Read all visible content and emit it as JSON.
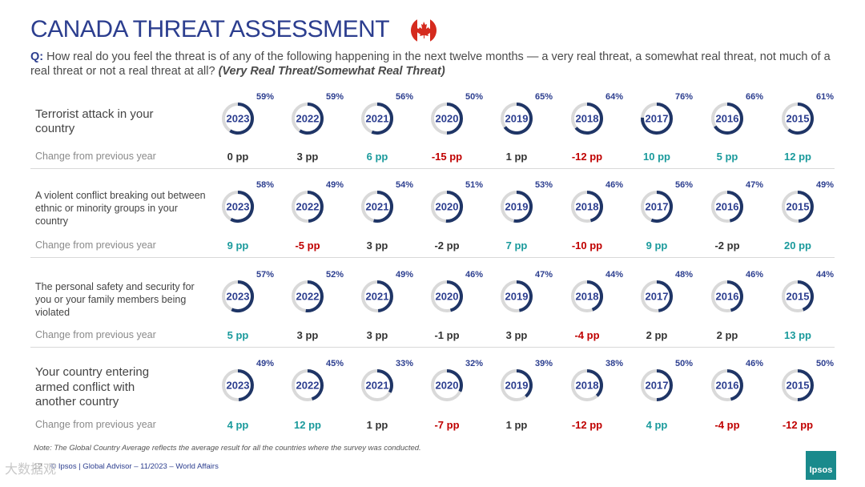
{
  "header": {
    "title": "CANADA THREAT ASSESSMENT",
    "question_prefix": "Q:",
    "question_text": "How real do you feel the threat is of any of the following happening in the next twelve months — a very real threat, a somewhat real threat, not much of a real threat or not a real threat at all?",
    "question_note": "(Very Real Threat/Somewhat Real Threat)"
  },
  "colors": {
    "accent": "#2c3e8f",
    "ring_fill": "#1f3566",
    "ring_track": "#d9d9d9",
    "positive": "#1a9a9c",
    "negative": "#c00000",
    "neutral": "#333333",
    "flag_red": "#d52b1e"
  },
  "chart_data": {
    "type": "donut-grid",
    "years": [
      "2023",
      "2022",
      "2021",
      "2020",
      "2019",
      "2018",
      "2017",
      "2016",
      "2015"
    ],
    "change_label": "Change from previous year",
    "rows": [
      {
        "label": "Terrorist attack in your country",
        "values": [
          59,
          59,
          56,
          50,
          65,
          64,
          76,
          66,
          61
        ],
        "pct_labels": [
          "59%",
          "59%",
          "56%",
          "50%",
          "65%",
          "64%",
          "76%",
          "66%",
          "61%"
        ],
        "changes": [
          "0 pp",
          "3 pp",
          "6 pp",
          "-15 pp",
          "1 pp",
          "-12 pp",
          "10 pp",
          "5 pp",
          "12 pp"
        ],
        "change_signs": [
          0,
          0,
          1,
          -1,
          0,
          -1,
          1,
          1,
          1
        ]
      },
      {
        "label": "A violent conflict breaking out between ethnic or minority groups in your country",
        "values": [
          58,
          49,
          54,
          51,
          53,
          46,
          56,
          47,
          49
        ],
        "pct_labels": [
          "58%",
          "49%",
          "54%",
          "51%",
          "53%",
          "46%",
          "56%",
          "47%",
          "49%"
        ],
        "changes": [
          "9 pp",
          "-5 pp",
          "3 pp",
          "-2 pp",
          "7 pp",
          "-10 pp",
          "9 pp",
          "-2 pp",
          "20 pp"
        ],
        "change_signs": [
          1,
          -1,
          0,
          0,
          1,
          -1,
          1,
          0,
          1
        ]
      },
      {
        "label": "The personal safety and security for you or your family members being violated",
        "values": [
          57,
          52,
          49,
          46,
          47,
          44,
          48,
          46,
          44
        ],
        "pct_labels": [
          "57%",
          "52%",
          "49%",
          "46%",
          "47%",
          "44%",
          "48%",
          "46%",
          "44%"
        ],
        "changes": [
          "5 pp",
          "3 pp",
          "3 pp",
          "-1 pp",
          "3 pp",
          "-4 pp",
          "2 pp",
          "2 pp",
          "13 pp"
        ],
        "change_signs": [
          1,
          0,
          0,
          0,
          0,
          -1,
          0,
          0,
          1
        ]
      },
      {
        "label": "Your country entering armed conflict with another country",
        "values": [
          49,
          45,
          33,
          32,
          39,
          38,
          50,
          46,
          50
        ],
        "pct_labels": [
          "49%",
          "45%",
          "33%",
          "32%",
          "39%",
          "38%",
          "50%",
          "46%",
          "50%"
        ],
        "changes": [
          "4 pp",
          "12 pp",
          "1 pp",
          "-7 pp",
          "1 pp",
          "-12 pp",
          "4 pp",
          "-4 pp",
          "-12 pp"
        ],
        "change_signs": [
          1,
          1,
          0,
          -1,
          0,
          -1,
          1,
          -1,
          -1
        ]
      }
    ]
  },
  "footer": {
    "note": "Note: The Global Country Average reflects the average result for all the countries where the survey was conducted.",
    "page_number": "12",
    "source": "© Ipsos | Global Advisor – 11/2023 – World Affairs",
    "logo": "Ipsos",
    "watermark": "大数据观"
  }
}
